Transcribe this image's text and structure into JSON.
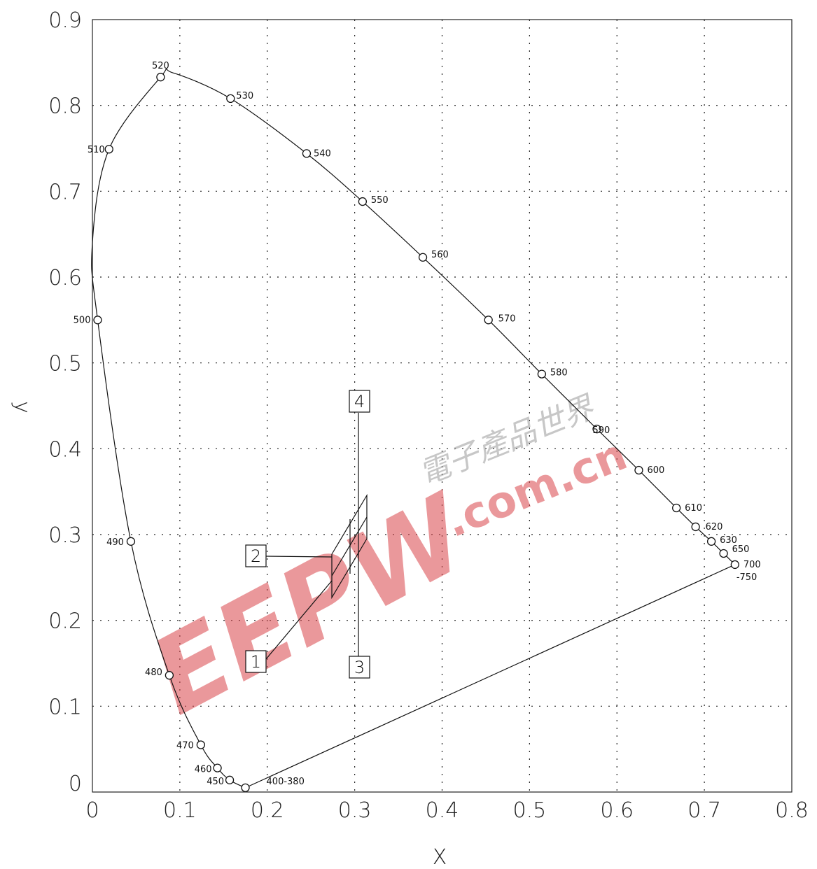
{
  "chart_data": {
    "type": "line",
    "xlabel": "X",
    "ylabel": "y",
    "xlim": [
      0,
      0.8
    ],
    "ylim": [
      0,
      0.9
    ],
    "x_ticks": [
      "0",
      "0.1",
      "0.2",
      "0.3",
      "0.4",
      "0.5",
      "0.6",
      "0.7",
      "0.8"
    ],
    "y_ticks": [
      "0",
      "0.1",
      "0.2",
      "0.3",
      "0.4",
      "0.5",
      "0.6",
      "0.7",
      "0.8",
      "0.9"
    ],
    "grid": true,
    "series": [
      {
        "points": [
          {
            "label": "400-380",
            "x": 0.175,
            "y": 0.005
          },
          {
            "label": "450",
            "x": 0.157,
            "y": 0.014
          },
          {
            "label": "460",
            "x": 0.143,
            "y": 0.028
          },
          {
            "label": "470",
            "x": 0.124,
            "y": 0.055
          },
          {
            "label": "480",
            "x": 0.088,
            "y": 0.136
          },
          {
            "label": "490",
            "x": 0.044,
            "y": 0.292
          },
          {
            "label": "500",
            "x": 0.006,
            "y": 0.55
          },
          {
            "label": "510",
            "x": 0.019,
            "y": 0.749
          },
          {
            "label": "520",
            "x": 0.078,
            "y": 0.833
          },
          {
            "label": "530",
            "x": 0.158,
            "y": 0.808
          },
          {
            "label": "540",
            "x": 0.245,
            "y": 0.744
          },
          {
            "label": "550",
            "x": 0.309,
            "y": 0.688
          },
          {
            "label": "560",
            "x": 0.378,
            "y": 0.623
          },
          {
            "label": "570",
            "x": 0.453,
            "y": 0.55
          },
          {
            "label": "580",
            "x": 0.514,
            "y": 0.487
          },
          {
            "label": "590",
            "x": 0.577,
            "y": 0.423
          },
          {
            "label": "600",
            "x": 0.625,
            "y": 0.375
          },
          {
            "label": "610",
            "x": 0.668,
            "y": 0.331
          },
          {
            "label": "620",
            "x": 0.69,
            "y": 0.309
          },
          {
            "label": "630",
            "x": 0.708,
            "y": 0.292
          },
          {
            "label": "650",
            "x": 0.722,
            "y": 0.278
          },
          {
            "label": "700 -750",
            "x": 0.735,
            "y": 0.265
          }
        ]
      }
    ],
    "callouts": [
      "1",
      "2",
      "3",
      "4"
    ],
    "watermark": "EEPW 電子產品世界 .com.cn"
  }
}
